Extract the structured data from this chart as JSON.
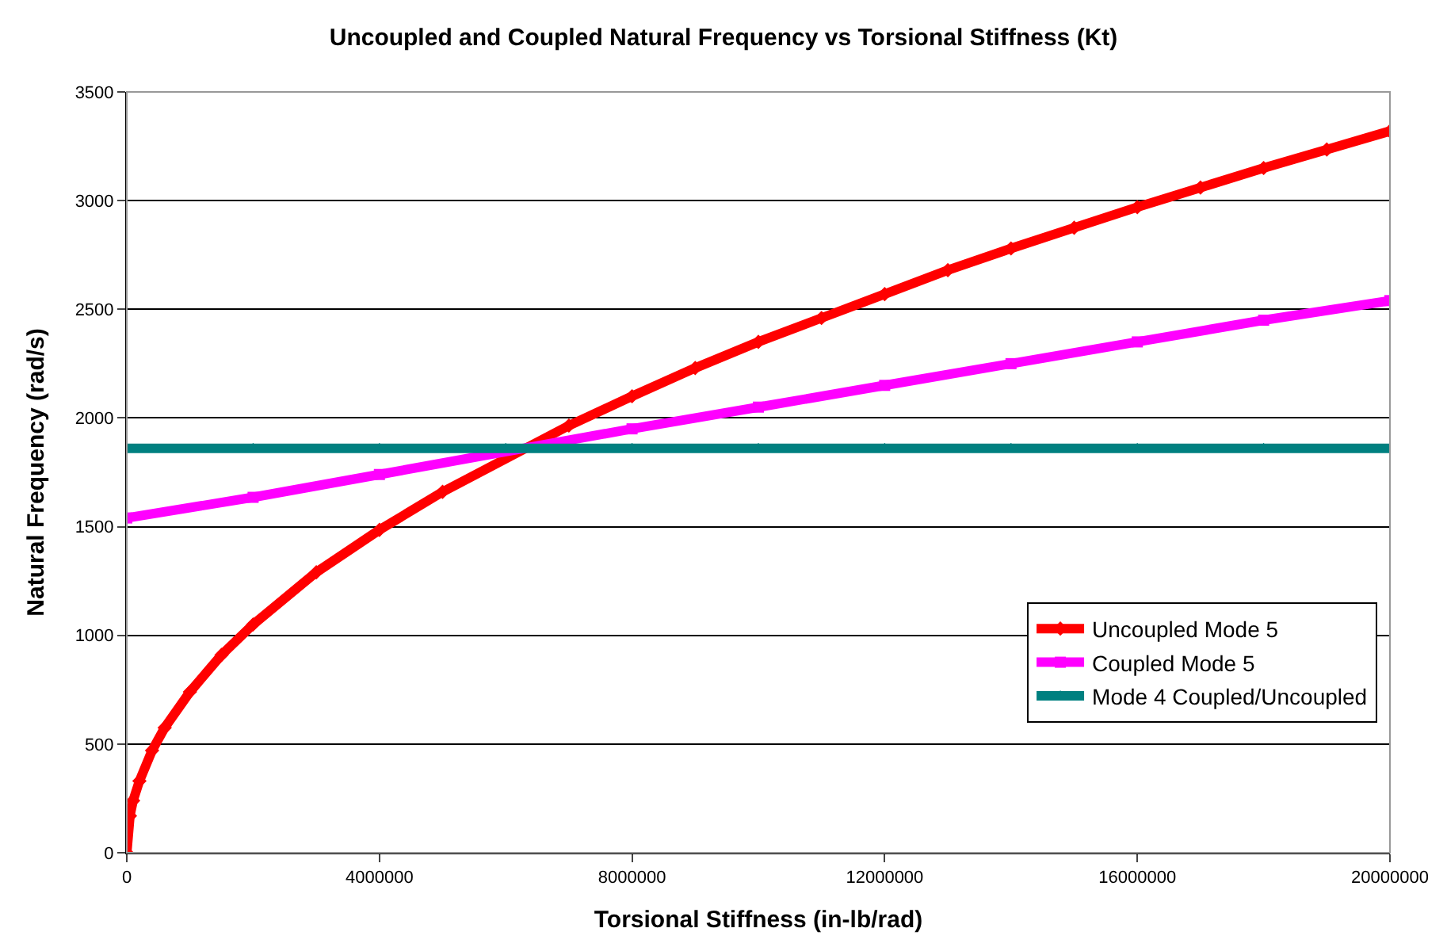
{
  "chart_data": {
    "type": "line",
    "title": "Uncoupled and Coupled Natural Frequency vs Torsional Stiffness (Kt)",
    "xlabel": "Torsional Stiffness (in-lb/rad)",
    "ylabel": "Natural Frequency (rad/s)",
    "xlim": [
      0,
      20000000
    ],
    "xticks": [
      0,
      4000000,
      8000000,
      12000000,
      16000000,
      20000000
    ],
    "ylim": [
      0,
      3500
    ],
    "yticks": [
      0,
      500,
      1000,
      1500,
      2000,
      2500,
      3000,
      3500
    ],
    "grid": "y",
    "legend": "right",
    "series": [
      {
        "name": "Uncoupled Mode 5",
        "color": "#ff0000",
        "marker": "diamond",
        "x": [
          0,
          50000,
          100000,
          200000,
          400000,
          600000,
          1000000,
          1500000,
          2000000,
          3000000,
          4000000,
          5000000,
          7000000,
          8000000,
          9000000,
          10000000,
          11000000,
          12000000,
          13000000,
          14000000,
          15000000,
          16000000,
          17000000,
          18000000,
          19000000,
          20000000
        ],
        "values": [
          0,
          170,
          240,
          330,
          470,
          575,
          740,
          910,
          1050,
          1290,
          1485,
          1660,
          1965,
          2100,
          2230,
          2350,
          2460,
          2570,
          2680,
          2780,
          2875,
          2970,
          3060,
          3150,
          3235,
          3320
        ]
      },
      {
        "name": "Coupled Mode 5",
        "color": "#ff00ff",
        "marker": "square",
        "x": [
          0,
          2000000,
          4000000,
          8000000,
          10000000,
          12000000,
          14000000,
          16000000,
          18000000,
          20000000
        ],
        "values": [
          1540,
          1635,
          1740,
          1950,
          2050,
          2150,
          2250,
          2350,
          2450,
          2540
        ]
      },
      {
        "name": "Mode 4 Coupled/Uncoupled",
        "color": "#008080",
        "marker": "triangle",
        "x": [
          0,
          2000000,
          4000000,
          6000000,
          8000000,
          10000000,
          12000000,
          14000000,
          16000000,
          18000000,
          20000000
        ],
        "values": [
          1860,
          1860,
          1860,
          1860,
          1860,
          1860,
          1860,
          1860,
          1860,
          1860,
          1860
        ]
      }
    ]
  }
}
